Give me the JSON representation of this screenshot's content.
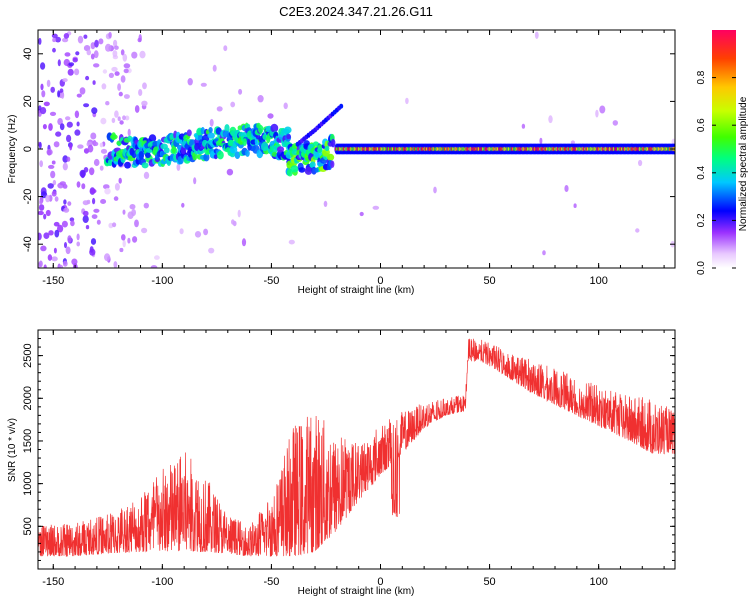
{
  "figure_title": "C2E3.2024.347.21.26.G11",
  "chart_data": [
    {
      "type": "heatmap",
      "name": "spectrogram",
      "xlabel": "Height of straight line (km)",
      "ylabel": "Frequency (Hz)",
      "xlim": [
        -157,
        135
      ],
      "ylim": [
        -50,
        50
      ],
      "xticks": [
        -150,
        -100,
        -50,
        0,
        50,
        100
      ],
      "yticks": [
        -40,
        -20,
        0,
        20,
        40
      ],
      "xtick_labels": [
        "-150",
        "-100",
        "-50",
        "0",
        "50",
        "100"
      ],
      "ytick_labels": [
        "-40",
        "-20",
        "0",
        "20",
        "40"
      ],
      "colorbar": {
        "label": "Normalized spectral amplitude",
        "range": [
          0,
          1
        ],
        "ticks": [
          0.0,
          0.2,
          0.4,
          0.6,
          0.8
        ],
        "tick_labels": [
          "0.0",
          "0.2",
          "0.4",
          "0.6",
          "0.8"
        ]
      },
      "traces": [
        {
          "x": [
            -125,
            -110,
            -90,
            -70,
            -55,
            -42
          ],
          "y": [
            0,
            -2,
            1,
            3,
            4,
            2
          ],
          "amp": 0.35
        },
        {
          "x": [
            -42,
            -35,
            -28,
            -22
          ],
          "y": [
            -5,
            -4,
            -3,
            -1
          ],
          "amp": 0.45
        },
        {
          "x": [
            -20,
            0,
            30,
            55,
            80,
            110,
            135
          ],
          "y": [
            0,
            0,
            0,
            0,
            0,
            0,
            0
          ],
          "amp": 0.95
        }
      ],
      "chirp": {
        "x": [
          -38,
          -30,
          -24,
          -18
        ],
        "y": [
          2,
          8,
          13,
          18
        ]
      }
    },
    {
      "type": "line",
      "name": "snr",
      "xlabel": "Height of straight line (km)",
      "ylabel": "SNR (10 * v/v)",
      "xlim": [
        -157,
        135
      ],
      "ylim": [
        0,
        2800
      ],
      "xticks": [
        -150,
        -100,
        -50,
        0,
        50,
        100
      ],
      "yticks": [
        500,
        1000,
        1500,
        2000,
        2500
      ],
      "xtick_labels": [
        "-150",
        "-100",
        "-50",
        "0",
        "50",
        "100"
      ],
      "ytick_labels": [
        "500",
        "1000",
        "1500",
        "2000",
        "2500"
      ],
      "color": "#f03030",
      "envelope": {
        "x": [
          -157,
          -140,
          -125,
          -110,
          -100,
          -90,
          -80,
          -70,
          -60,
          -50,
          -40,
          -30,
          -20,
          -10,
          0,
          10,
          20,
          30,
          39,
          40,
          45,
          55,
          70,
          90,
          110,
          125,
          135
        ],
        "base": [
          150,
          150,
          180,
          200,
          200,
          210,
          200,
          180,
          150,
          150,
          150,
          200,
          450,
          800,
          1100,
          1350,
          1650,
          1800,
          1850,
          2400,
          2450,
          2300,
          2050,
          1800,
          1550,
          1350,
          1350
        ],
        "top": [
          500,
          550,
          650,
          900,
          1200,
          1400,
          1100,
          650,
          500,
          900,
          1700,
          1900,
          1600,
          1500,
          1700,
          1850,
          1950,
          2000,
          2050,
          2700,
          2700,
          2600,
          2450,
          2250,
          2050,
          2000,
          1850
        ]
      }
    }
  ]
}
